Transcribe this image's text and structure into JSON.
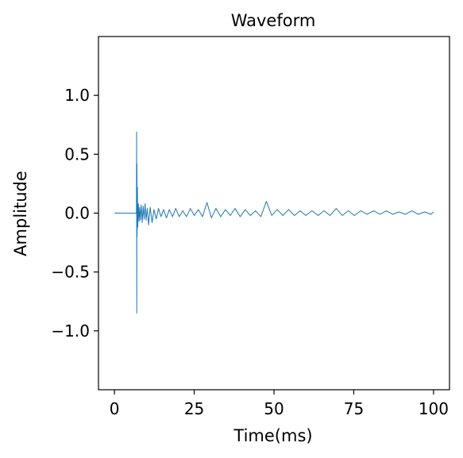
{
  "chart_data": {
    "type": "line",
    "title": "Waveform",
    "xlabel": "Time(ms)",
    "ylabel": "Amplitude",
    "xlim": [
      -5,
      105
    ],
    "ylim": [
      -1.5,
      1.5
    ],
    "x_ticks": [
      0,
      25,
      50,
      75,
      100
    ],
    "x_tick_labels": [
      "0",
      "25",
      "50",
      "75",
      "100"
    ],
    "y_ticks": [
      1.0,
      0.5,
      0.0,
      -0.5,
      -1.0
    ],
    "y_tick_labels": [
      "1.0",
      "0.5",
      "0.0",
      "−0.5",
      "−1.0"
    ],
    "grid": false,
    "line_color": "#1f77b4",
    "series": [
      {
        "x": [
          0,
          6.9,
          6.95,
          7.0,
          7.05,
          7.1,
          7.2,
          7.3,
          7.5,
          7.7,
          7.9,
          8.1,
          8.4,
          8.7,
          9.0,
          9.3,
          9.6,
          9.9,
          10.3,
          10.7,
          11.2,
          11.8,
          12.4,
          13.1,
          13.8,
          14.6,
          15.4,
          16.3,
          17.2,
          18.2,
          19.2,
          20.3,
          21.4,
          22.6,
          23.8,
          25.0,
          26.3,
          27.6,
          29.0,
          30.4,
          31.8,
          33.3,
          34.8,
          36.3,
          37.8,
          39.4,
          41.0,
          42.6,
          44.2,
          45.9,
          47.6,
          49.3,
          51.0,
          52.8,
          54.6,
          56.4,
          58.2,
          60.0,
          61.9,
          63.8,
          65.7,
          67.6,
          69.5,
          71.4,
          73.3,
          75.2,
          77.2,
          79.2,
          81.2,
          83.2,
          85.2,
          87.2,
          89.2,
          91.2,
          93.2,
          95.2,
          97.2,
          99.2,
          100
        ],
        "y": [
          0,
          0,
          0.69,
          -0.85,
          0.42,
          -0.2,
          0.22,
          -0.12,
          0.08,
          -0.07,
          0.05,
          -0.06,
          0.07,
          -0.08,
          0.06,
          -0.05,
          0.08,
          -0.06,
          0.04,
          -0.1,
          0.05,
          -0.08,
          0.03,
          -0.05,
          0.04,
          -0.03,
          0.03,
          -0.04,
          0.03,
          -0.03,
          0.04,
          -0.03,
          0.02,
          -0.03,
          0.04,
          -0.02,
          0.03,
          -0.03,
          0.09,
          -0.04,
          0.04,
          -0.03,
          0.03,
          -0.02,
          0.04,
          -0.03,
          0.03,
          -0.02,
          0.02,
          -0.03,
          0.1,
          -0.02,
          0.03,
          -0.02,
          0.03,
          -0.02,
          0.02,
          -0.02,
          0.02,
          -0.02,
          0.02,
          -0.02,
          0.04,
          -0.02,
          0.02,
          -0.02,
          0.02,
          -0.01,
          0.02,
          -0.01,
          0.02,
          -0.01,
          0.01,
          -0.01,
          0.02,
          -0.01,
          0.01,
          -0.01,
          0.01
        ]
      }
    ]
  }
}
